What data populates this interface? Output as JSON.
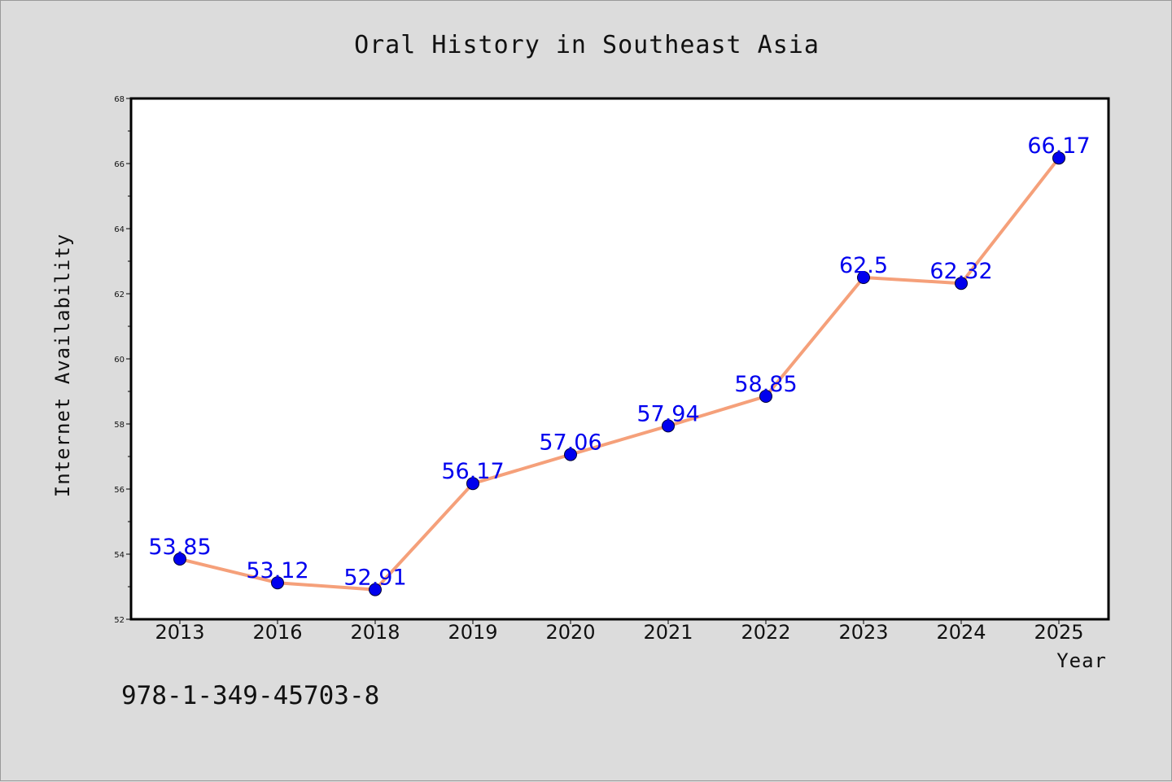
{
  "chart_data": {
    "type": "line",
    "title": "Oral History in Southeast Asia",
    "xlabel": "Year",
    "ylabel": "Internet Availability",
    "categories": [
      "2013",
      "2016",
      "2018",
      "2019",
      "2020",
      "2021",
      "2022",
      "2023",
      "2024",
      "2025"
    ],
    "values": [
      53.85,
      53.12,
      52.91,
      56.17,
      57.06,
      57.94,
      58.85,
      62.5,
      62.32,
      66.17
    ],
    "data_labels": [
      "53.85",
      "53.12",
      "52.91",
      "56.17",
      "57.06",
      "57.94",
      "58.85",
      "62.5",
      "62.32",
      "66.17"
    ],
    "ylim": [
      52,
      68
    ],
    "yticks": [
      "52",
      "54",
      "56",
      "58",
      "60",
      "62",
      "64",
      "66",
      "68"
    ],
    "grid": false,
    "colors": {
      "line": "#f5a07a",
      "marker": "#0000ee",
      "label": "#0000ee",
      "figure_bg": "#dcdcdc",
      "plot_bg": "#ffffff"
    }
  },
  "footer": {
    "isbn": "978-1-349-45703-8"
  }
}
